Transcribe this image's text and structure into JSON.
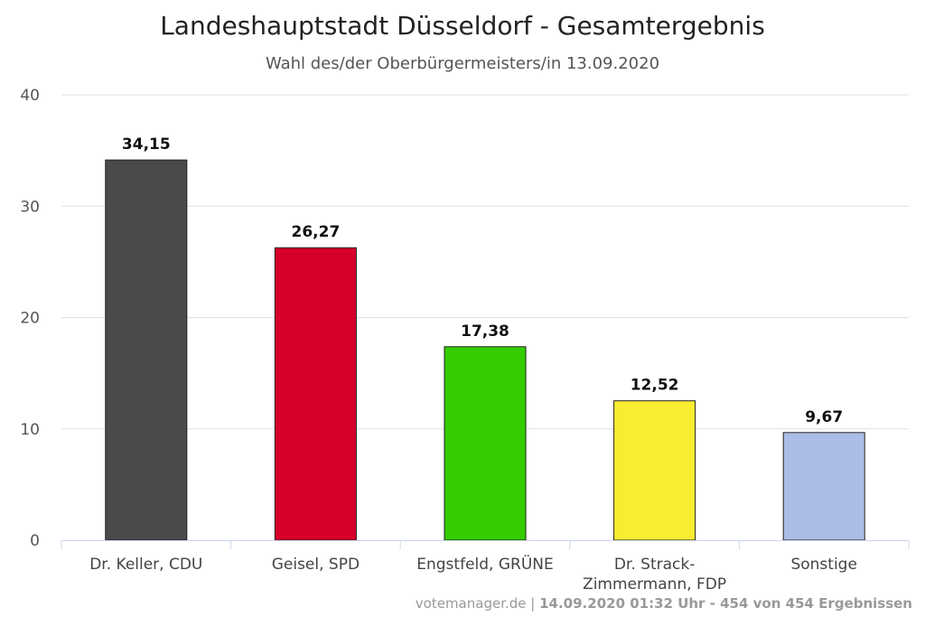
{
  "header": {
    "title": "Landeshauptstadt Düsseldorf - Gesamtergebnis",
    "subtitle": "Wahl des/der Oberbürgermeisters/in 13.09.2020"
  },
  "footer": {
    "source": "votemanager.de",
    "separator": " | ",
    "status": "14.09.2020 01:32 Uhr - 454 von 454 Ergebnissen"
  },
  "chart_data": {
    "type": "bar",
    "title": "Landeshauptstadt Düsseldorf - Gesamtergebnis",
    "subtitle": "Wahl des/der Oberbürgermeisters/in 13.09.2020",
    "xlabel": "",
    "ylabel": "",
    "ylim": [
      0,
      40
    ],
    "yticks": [
      0,
      10,
      20,
      30,
      40
    ],
    "grid": true,
    "legend": "none",
    "categories": [
      [
        "Dr. Keller, CDU"
      ],
      [
        "Geisel, SPD"
      ],
      [
        "Engstfeld, GRÜNE"
      ],
      [
        "Dr. Strack-",
        "Zimmermann, FDP"
      ],
      [
        "Sonstige"
      ]
    ],
    "values": [
      34.15,
      26.27,
      17.38,
      12.52,
      9.67
    ],
    "data_labels": [
      "34,15",
      "26,27",
      "17,38",
      "12,52",
      "9,67"
    ],
    "colors": [
      "#4a4a4a",
      "#d6002a",
      "#33cc00",
      "#faeb33",
      "#aabde6"
    ]
  }
}
